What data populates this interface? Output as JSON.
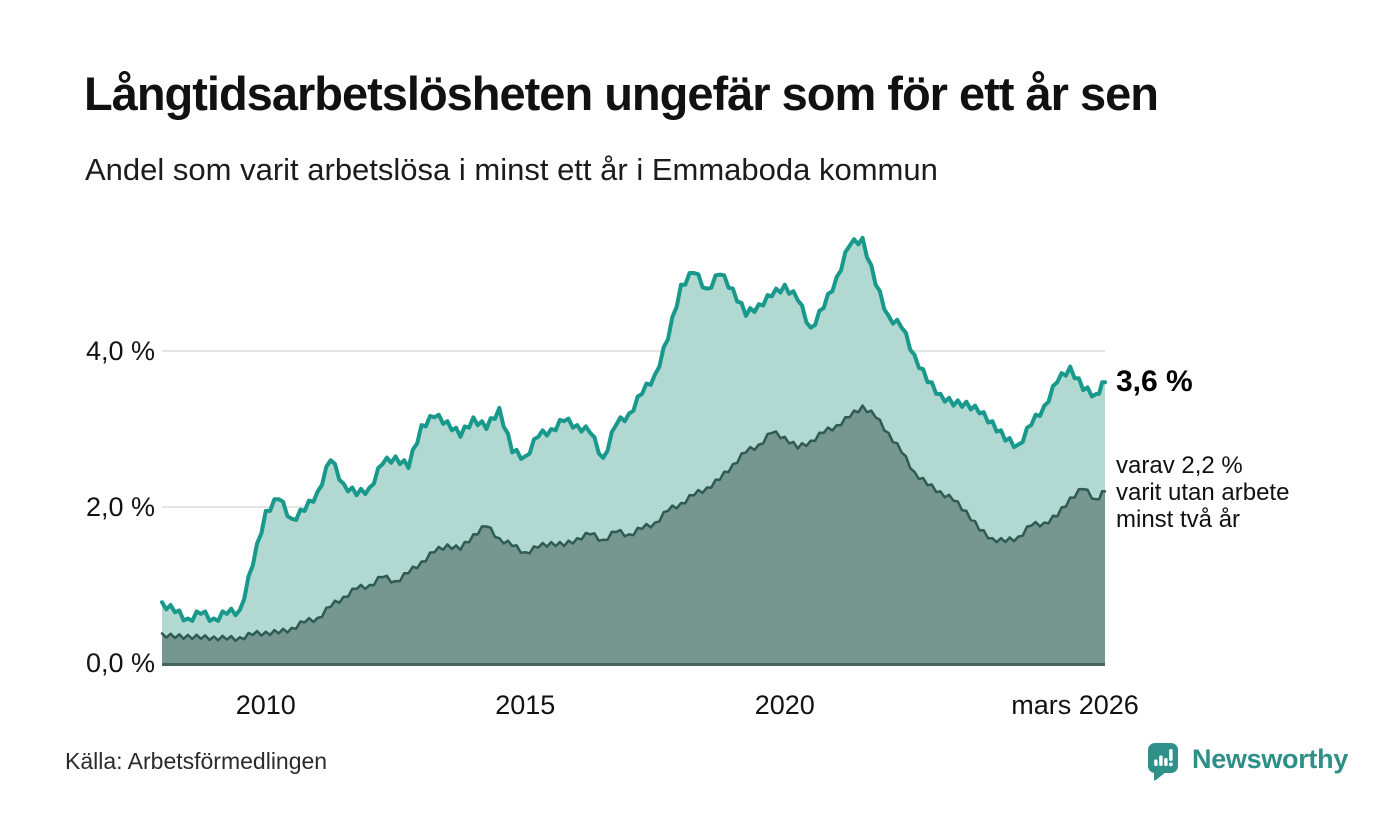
{
  "chart_data": {
    "type": "area",
    "title": "Långtidsarbetslösheten ungefär som för ett år sen",
    "subtitle": "Andel som varit arbetslösa i minst ett år i Emmaboda kommun",
    "unit": "%",
    "x_start_label": "2008",
    "x": [
      2008.0,
      2008.25,
      2008.5,
      2008.75,
      2009.0,
      2009.25,
      2009.5,
      2009.75,
      2010.0,
      2010.25,
      2010.5,
      2010.75,
      2011.0,
      2011.25,
      2011.5,
      2011.75,
      2012.0,
      2012.25,
      2012.5,
      2012.75,
      2013.0,
      2013.25,
      2013.5,
      2013.75,
      2014.0,
      2014.25,
      2014.5,
      2014.75,
      2015.0,
      2015.25,
      2015.5,
      2015.75,
      2016.0,
      2016.25,
      2016.5,
      2016.75,
      2017.0,
      2017.25,
      2017.5,
      2017.75,
      2018.0,
      2018.25,
      2018.5,
      2018.75,
      2019.0,
      2019.25,
      2019.5,
      2019.75,
      2020.0,
      2020.25,
      2020.5,
      2020.75,
      2021.0,
      2021.25,
      2021.5,
      2021.75,
      2022.0,
      2022.25,
      2022.5,
      2022.75,
      2023.0,
      2023.25,
      2023.5,
      2023.75,
      2024.0,
      2024.25,
      2024.5,
      2024.75,
      2025.0,
      2025.25,
      2025.5,
      2025.75,
      2026.0,
      2026.17
    ],
    "series": [
      {
        "name": "Andel som varit arbetslösa minst ett år",
        "line_color": "#18998c",
        "fill_color": "#b1d8d1",
        "values": [
          0.78,
          0.65,
          0.57,
          0.63,
          0.57,
          0.63,
          0.68,
          1.25,
          1.95,
          2.1,
          1.85,
          1.95,
          2.2,
          2.6,
          2.3,
          2.15,
          2.25,
          2.55,
          2.65,
          2.5,
          3.05,
          3.15,
          3.1,
          2.9,
          3.15,
          3.0,
          3.27,
          2.7,
          2.65,
          2.9,
          3.0,
          3.1,
          3.05,
          2.95,
          2.63,
          3.05,
          3.2,
          3.45,
          3.7,
          4.15,
          4.85,
          5.0,
          4.8,
          4.98,
          4.8,
          4.45,
          4.6,
          4.7,
          4.85,
          4.65,
          4.3,
          4.55,
          4.95,
          5.35,
          5.45,
          4.85,
          4.45,
          4.3,
          3.95,
          3.6,
          3.45,
          3.3,
          3.35,
          3.2,
          3.1,
          2.85,
          2.8,
          3.05,
          3.3,
          3.6,
          3.8,
          3.5,
          3.45,
          3.6
        ]
      },
      {
        "name": "varav varit utan arbete minst två år",
        "line_color": "#2e5b53",
        "fill_color": "#75978f",
        "values": [
          0.38,
          0.32,
          0.36,
          0.31,
          0.34,
          0.3,
          0.33,
          0.36,
          0.4,
          0.38,
          0.45,
          0.52,
          0.58,
          0.72,
          0.85,
          0.95,
          1.0,
          1.1,
          1.05,
          1.15,
          1.3,
          1.42,
          1.52,
          1.45,
          1.65,
          1.75,
          1.6,
          1.5,
          1.42,
          1.48,
          1.55,
          1.5,
          1.6,
          1.65,
          1.58,
          1.68,
          1.65,
          1.72,
          1.8,
          1.95,
          2.05,
          2.15,
          2.25,
          2.35,
          2.55,
          2.7,
          2.8,
          2.95,
          2.9,
          2.75,
          2.85,
          2.95,
          3.05,
          3.15,
          3.3,
          3.15,
          2.95,
          2.7,
          2.45,
          2.28,
          2.2,
          2.08,
          1.95,
          1.7,
          1.6,
          1.55,
          1.62,
          1.76,
          1.8,
          1.88,
          2.12,
          2.23,
          2.1,
          2.2
        ]
      }
    ],
    "x_axis": {
      "ticks": [
        {
          "label": "2010",
          "year": 2010
        },
        {
          "label": "2015",
          "year": 2015
        },
        {
          "label": "2020",
          "year": 2020
        },
        {
          "label": "mars 2026",
          "year": 2026.17
        }
      ]
    },
    "y_axis": {
      "ticks": [
        {
          "label": "0,0 %",
          "value": 0
        },
        {
          "label": "2,0 %",
          "value": 2
        },
        {
          "label": "4,0 %",
          "value": 4
        }
      ],
      "range": [
        0,
        5.8
      ],
      "grid": true
    },
    "annotations": {
      "latest": {
        "label": "3,6 %",
        "value": 3.6
      },
      "secondary": {
        "lines": [
          "varav 2,2 %",
          "varit utan arbete",
          "minst två år"
        ],
        "value": 2.2
      }
    },
    "grid_color": "#e4e4e4",
    "baseline_color": "#47655e"
  },
  "source": {
    "label": "Källa: Arbetsförmedlingen"
  },
  "branding": {
    "name": "Newsworthy",
    "color": "#2f8f87"
  }
}
